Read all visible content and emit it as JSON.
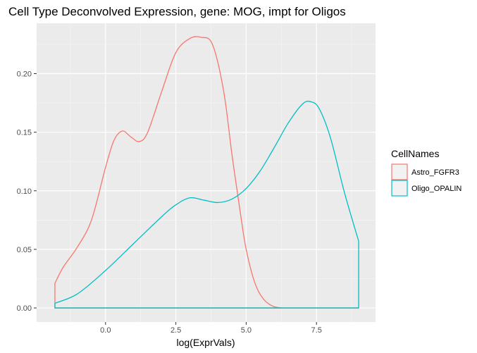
{
  "chart_data": {
    "type": "line",
    "title": "Cell Type Deconvolved Expression, gene: MOG, impt for Oligos",
    "xlabel": "log(ExprVals)",
    "ylabel": "",
    "xlim": [
      -2.45,
      9.6
    ],
    "ylim": [
      -0.012,
      0.243
    ],
    "x_ticks": [
      0.0,
      2.5,
      5.0,
      7.5
    ],
    "x_tick_labels": [
      "0.0",
      "2.5",
      "5.0",
      "7.5"
    ],
    "y_ticks": [
      0.0,
      0.05,
      0.1,
      0.15,
      0.2
    ],
    "y_tick_labels": [
      "0.00",
      "0.05",
      "0.10",
      "0.15",
      "0.20"
    ],
    "grid": true,
    "legend": {
      "title": "CellNames",
      "position": "right"
    },
    "series": [
      {
        "name": "Astro_FGFR3",
        "color": "#F8766D",
        "x": [
          -1.8,
          -1.5,
          -1.0,
          -0.5,
          0.0,
          0.3,
          0.6,
          0.9,
          1.2,
          1.5,
          2.0,
          2.5,
          3.0,
          3.4,
          3.8,
          4.2,
          4.5,
          4.8,
          5.0,
          5.3,
          5.6,
          6.0,
          6.5,
          7.0,
          8.0,
          9.0
        ],
        "y": [
          0.021,
          0.035,
          0.052,
          0.075,
          0.12,
          0.143,
          0.151,
          0.146,
          0.142,
          0.15,
          0.185,
          0.218,
          0.23,
          0.231,
          0.225,
          0.185,
          0.13,
          0.08,
          0.05,
          0.022,
          0.008,
          0.001,
          0.0,
          0.0,
          0.0,
          0.0
        ]
      },
      {
        "name": "Oligo_OPALIN",
        "color": "#00BFC4",
        "x": [
          -1.8,
          -1.0,
          0.0,
          1.0,
          2.0,
          2.5,
          3.0,
          3.5,
          4.0,
          4.5,
          5.0,
          5.5,
          6.0,
          6.5,
          7.0,
          7.3,
          7.6,
          8.0,
          8.5,
          9.0
        ],
        "y": [
          0.004,
          0.012,
          0.032,
          0.055,
          0.078,
          0.088,
          0.094,
          0.092,
          0.09,
          0.093,
          0.102,
          0.117,
          0.137,
          0.158,
          0.174,
          0.176,
          0.17,
          0.145,
          0.098,
          0.057
        ]
      }
    ]
  }
}
